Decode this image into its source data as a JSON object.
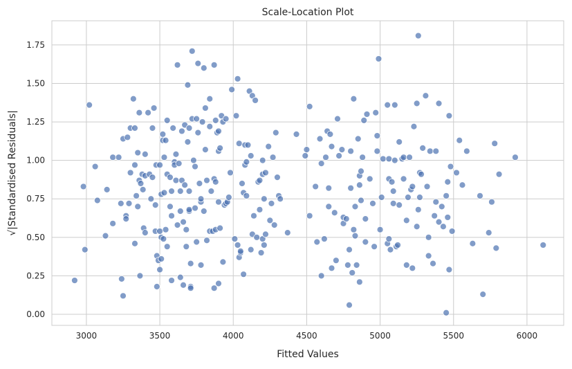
{
  "chart_data": {
    "type": "scatter",
    "title": "Scale-Location Plot",
    "x_label": "Fitted Values",
    "y_label": "√|Standardised Residuals|",
    "xlim": [
      2765,
      6250
    ],
    "ylim": [
      -0.072,
      1.907
    ],
    "grid": true,
    "color": "#4c72b0",
    "xticks": [
      3000,
      3500,
      4000,
      4500,
      5000,
      5500,
      6000
    ],
    "yticks": [
      {
        "value": 0,
        "label": "0.00"
      },
      {
        "value": 0.25,
        "label": "0.25"
      },
      {
        "value": 0.5,
        "label": "0.50"
      },
      {
        "value": 0.75,
        "label": "0.75"
      },
      {
        "value": 1,
        "label": "1.00"
      },
      {
        "value": 1.25,
        "label": "1.25"
      },
      {
        "value": 1.5,
        "label": "1.50"
      },
      {
        "value": 1.75,
        "label": "1.75"
      }
    ],
    "x": [
      2920,
      2980,
      2990,
      3020,
      3060,
      3075,
      3130,
      3140,
      3180,
      3180,
      3220,
      3240,
      3235,
      3250,
      3250,
      3270,
      3270,
      3280,
      3290,
      3300,
      3300,
      3320,
      3330,
      3330,
      3330,
      3340,
      3350,
      3350,
      3360,
      3360,
      3365,
      3370,
      3380,
      3385,
      3390,
      3400,
      3400,
      3400,
      3420,
      3430,
      3440,
      3450,
      3450,
      3460,
      3470,
      3470,
      3475,
      3480,
      3480,
      3490,
      3500,
      3500,
      3500,
      3510,
      3510,
      3510,
      3520,
      3520,
      3525,
      3530,
      3530,
      3540,
      3540,
      3550,
      3550,
      3550,
      3570,
      3570,
      3580,
      3580,
      3580,
      3590,
      3600,
      3600,
      3610,
      3610,
      3620,
      3620,
      3630,
      3640,
      3640,
      3640,
      3650,
      3650,
      3660,
      3660,
      3670,
      3670,
      3680,
      3680,
      3690,
      3690,
      3700,
      3700,
      3700,
      3700,
      3710,
      3710,
      3710,
      3720,
      3720,
      3730,
      3740,
      3740,
      3750,
      3750,
      3760,
      3760,
      3770,
      3780,
      3780,
      3780,
      3790,
      3800,
      3800,
      3810,
      3810,
      3820,
      3820,
      3840,
      3840,
      3840,
      3850,
      3860,
      3870,
      3870,
      3870,
      3880,
      3880,
      3880,
      3890,
      3900,
      3900,
      3900,
      3900,
      3910,
      3910,
      3920,
      3930,
      3930,
      3940,
      3950,
      3950,
      3960,
      3970,
      3980,
      3990,
      4010,
      4020,
      4030,
      4030,
      4040,
      4040,
      4050,
      4050,
      4060,
      4070,
      4070,
      4080,
      4080,
      4090,
      4090,
      4100,
      4110,
      4120,
      4120,
      4130,
      4130,
      4140,
      4150,
      4160,
      4170,
      4180,
      4180,
      4190,
      4200,
      4200,
      4200,
      4210,
      4210,
      4220,
      4220,
      4240,
      4250,
      4260,
      4270,
      4280,
      4290,
      4300,
      4310,
      4320,
      4370,
      4430,
      4490,
      4500,
      4520,
      4520,
      4560,
      4570,
      4590,
      4600,
      4600,
      4620,
      4630,
      4640,
      4650,
      4650,
      4660,
      4670,
      4670,
      4690,
      4700,
      4710,
      4720,
      4740,
      4750,
      4750,
      4770,
      4780,
      4790,
      4790,
      4800,
      4800,
      4810,
      4820,
      4820,
      4830,
      4830,
      4840,
      4850,
      4860,
      4860,
      4860,
      4870,
      4870,
      4880,
      4890,
      4900,
      4900,
      4910,
      4930,
      4950,
      4960,
      4970,
      4980,
      4980,
      4990,
      5000,
      5010,
      5020,
      5050,
      5050,
      5060,
      5060,
      5060,
      5070,
      5080,
      5090,
      5090,
      5100,
      5100,
      5110,
      5120,
      5130,
      5130,
      5150,
      5160,
      5160,
      5180,
      5180,
      5190,
      5200,
      5210,
      5220,
      5220,
      5230,
      5250,
      5250,
      5260,
      5260,
      5270,
      5270,
      5280,
      5290,
      5310,
      5320,
      5330,
      5330,
      5340,
      5360,
      5370,
      5380,
      5380,
      5400,
      5400,
      5420,
      5430,
      5450,
      5450,
      5460,
      5460,
      5470,
      5470,
      5480,
      5490,
      5520,
      5540,
      5560,
      5590,
      5630,
      5680,
      5700,
      5740,
      5760,
      5780,
      5790,
      5810,
      5920,
      6110
    ],
    "values": [
      0.22,
      0.83,
      0.42,
      1.36,
      0.96,
      0.74,
      0.51,
      0.81,
      1.02,
      0.59,
      1.02,
      0.23,
      0.72,
      0.12,
      1.14,
      0.64,
      0.62,
      1.15,
      0.72,
      0.92,
      1.21,
      1.4,
      1.21,
      0.46,
      0.97,
      0.77,
      1.05,
      0.7,
      1.31,
      0.87,
      0.25,
      0.85,
      0.91,
      0.81,
      0.56,
      1.04,
      0.53,
      0.9,
      1.31,
      0.91,
      0.75,
      1.21,
      0.89,
      1.34,
      0.71,
      0.54,
      0.97,
      0.38,
      0.18,
      0.35,
      0.54,
      0.29,
      0.97,
      0.78,
      0.5,
      0.36,
      1.17,
      1.13,
      0.49,
      0.79,
      1.02,
      1.13,
      0.55,
      0.91,
      1.26,
      0.44,
      0.89,
      0.7,
      0.8,
      0.64,
      0.22,
      1.21,
      0.99,
      0.97,
      1.04,
      0.87,
      1.62,
      0.58,
      0.98,
      0.24,
      0.67,
      0.8,
      1.19,
      0.87,
      0.6,
      0.19,
      1.23,
      0.84,
      0.55,
      0.44,
      1.49,
      1.12,
      1.21,
      0.67,
      0.68,
      0.8,
      0.33,
      0.18,
      0.17,
      1.71,
      1.27,
      1.0,
      0.69,
      0.96,
      1.27,
      0.47,
      1.63,
      1.18,
      0.85,
      0.73,
      0.75,
      0.32,
      1.25,
      1.6,
      0.67,
      1.07,
      1.34,
      0.87,
      0.48,
      1.4,
      1.22,
      0.54,
      0.8,
      0.54,
      1.62,
      0.88,
      0.17,
      1.26,
      0.86,
      0.55,
      1.18,
      1.19,
      1.06,
      0.73,
      0.2,
      1.08,
      0.56,
      1.29,
      1.25,
      0.34,
      0.71,
      1.27,
      0.72,
      0.73,
      0.76,
      0.92,
      1.46,
      0.49,
      1.29,
      0.45,
      1.53,
      1.11,
      0.37,
      0.4,
      0.41,
      0.85,
      0.26,
      0.79,
      1.1,
      0.97,
      0.99,
      0.77,
      1.1,
      1.45,
      1.03,
      0.42,
      1.42,
      0.52,
      0.64,
      1.39,
      0.5,
      0.86,
      0.68,
      0.87,
      0.4,
      1.0,
      0.49,
      0.91,
      0.45,
      0.75,
      0.92,
      0.52,
      1.09,
      0.61,
      0.72,
      1.02,
      0.58,
      1.18,
      0.89,
      0.77,
      0.75,
      0.53,
      1.17,
      1.03,
      1.07,
      1.35,
      0.64,
      0.83,
      0.47,
      1.14,
      0.25,
      0.98,
      0.49,
      1.02,
      1.19,
      0.82,
      0.7,
      1.17,
      1.09,
      0.3,
      0.66,
      0.35,
      1.27,
      1.03,
      1.07,
      0.63,
      0.59,
      0.62,
      0.32,
      0.42,
      0.06,
      1.06,
      0.82,
      0.27,
      1.4,
      0.55,
      0.51,
      0.7,
      0.32,
      1.14,
      0.21,
      0.9,
      0.84,
      0.93,
      0.74,
      1.02,
      1.26,
      0.62,
      0.47,
      1.3,
      0.88,
      0.72,
      0.44,
      1.31,
      1.06,
      1.16,
      1.66,
      0.55,
      0.76,
      1.01,
      1.36,
      0.46,
      0.88,
      1.01,
      0.49,
      0.42,
      0.86,
      0.8,
      0.72,
      1.36,
      1.0,
      0.44,
      0.45,
      0.71,
      1.12,
      1.01,
      1.02,
      0.88,
      0.61,
      0.32,
      0.76,
      1.02,
      0.81,
      0.83,
      0.3,
      1.22,
      0.57,
      1.37,
      1.81,
      0.68,
      0.92,
      0.76,
      0.91,
      1.08,
      1.42,
      0.83,
      0.5,
      0.38,
      1.06,
      0.33,
      0.64,
      0.73,
      1.06,
      1.37,
      0.6,
      0.7,
      0.57,
      0.01,
      0.77,
      0.86,
      0.63,
      1.29,
      0.29,
      0.96,
      0.54,
      0.92,
      1.13,
      0.84,
      1.06,
      0.46,
      0.77,
      0.13,
      0.53,
      0.73,
      1.11,
      0.43,
      0.91,
      1.02,
      0.45
    ]
  }
}
